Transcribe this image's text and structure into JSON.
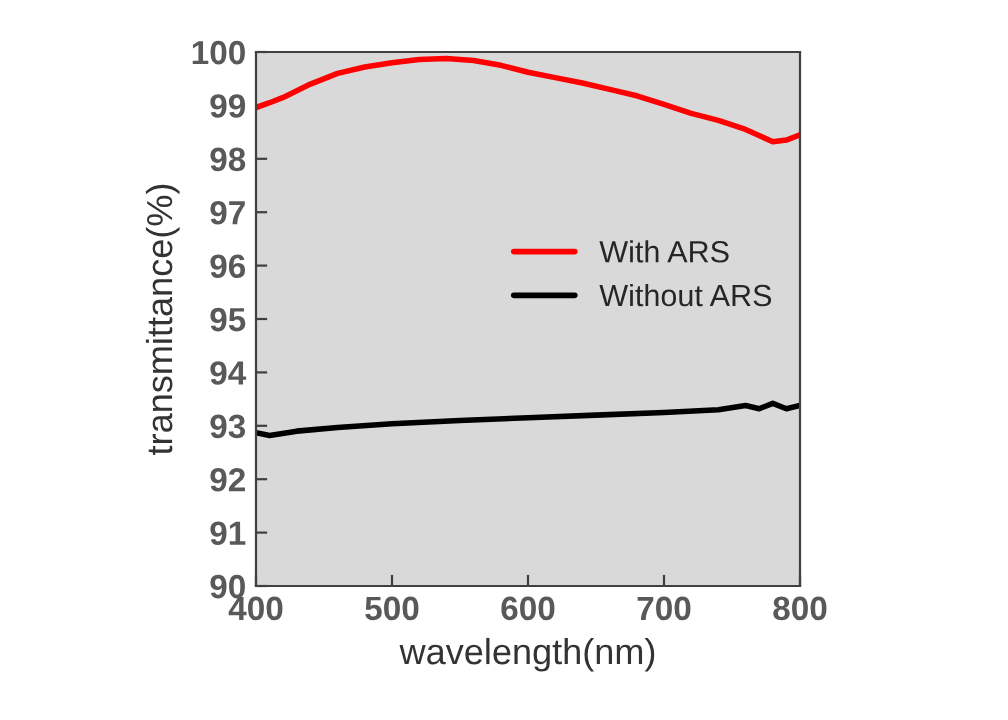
{
  "chart_data": {
    "type": "line",
    "xlabel": "wavelength(nm)",
    "ylabel": "transmittance(%)",
    "xlim": [
      400,
      800
    ],
    "xticks": [
      400,
      500,
      600,
      700,
      800
    ],
    "ylim": [
      90,
      100
    ],
    "yticks": [
      90,
      91,
      92,
      93,
      94,
      95,
      96,
      97,
      98,
      99,
      100
    ],
    "grid": false,
    "legend": "right",
    "marker": "none",
    "line_style": "solid",
    "series": [
      {
        "name": "With ARS",
        "color": "#ff0000",
        "x": [
          400,
          410,
          420,
          440,
          460,
          480,
          500,
          520,
          540,
          560,
          580,
          600,
          620,
          640,
          660,
          680,
          700,
          720,
          740,
          760,
          780,
          790,
          800
        ],
        "values": [
          98.96,
          99.05,
          99.15,
          99.4,
          99.6,
          99.72,
          99.8,
          99.86,
          99.88,
          99.84,
          99.75,
          99.62,
          99.52,
          99.42,
          99.3,
          99.18,
          99.02,
          98.85,
          98.72,
          98.55,
          98.32,
          98.35,
          98.45
        ]
      },
      {
        "name": "Without ARS",
        "color": "#000000",
        "x": [
          400,
          410,
          430,
          460,
          500,
          550,
          600,
          650,
          700,
          740,
          760,
          770,
          780,
          790,
          800
        ],
        "values": [
          92.87,
          92.82,
          92.9,
          92.97,
          93.04,
          93.1,
          93.15,
          93.2,
          93.25,
          93.3,
          93.38,
          93.32,
          93.42,
          93.32,
          93.38
        ]
      }
    ]
  }
}
